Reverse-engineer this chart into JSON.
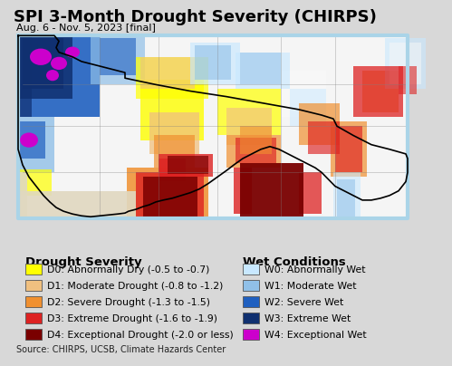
{
  "title": "SPI 3-Month Drought Severity (CHIRPS)",
  "subtitle": "Aug. 6 - Nov. 5, 2023 [final]",
  "source": "Source: CHIRPS, UCSB, Climate Hazards Center",
  "map_bg_color": "#aad4e8",
  "land_base_color": "#f0f0f0",
  "legend_bg_color": "#d8d8d8",
  "drought_labels": [
    "D0: Abnormally Dry (-0.5 to -0.7)",
    "D1: Moderate Drought (-0.8 to -1.2)",
    "D2: Severe Drought (-1.3 to -1.5)",
    "D3: Extreme Drought (-1.6 to -1.9)",
    "D4: Exceptional Drought (-2.0 or less)"
  ],
  "drought_colors": [
    "#ffff00",
    "#f0c080",
    "#f09030",
    "#dd2222",
    "#7a0000"
  ],
  "wet_labels": [
    "W0: Abnormally Wet",
    "W1: Moderate Wet",
    "W2: Severe Wet",
    "W3: Extreme Wet",
    "W4: Exceptional Wet"
  ],
  "wet_colors": [
    "#c8e8ff",
    "#90c0e8",
    "#2060c0",
    "#103070",
    "#cc00cc"
  ],
  "drought_section_title": "Drought Severity",
  "wet_section_title": "Wet Conditions",
  "title_fontsize": 13,
  "subtitle_fontsize": 8,
  "legend_title_fontsize": 9.5,
  "legend_label_fontsize": 7.8,
  "source_fontsize": 7
}
